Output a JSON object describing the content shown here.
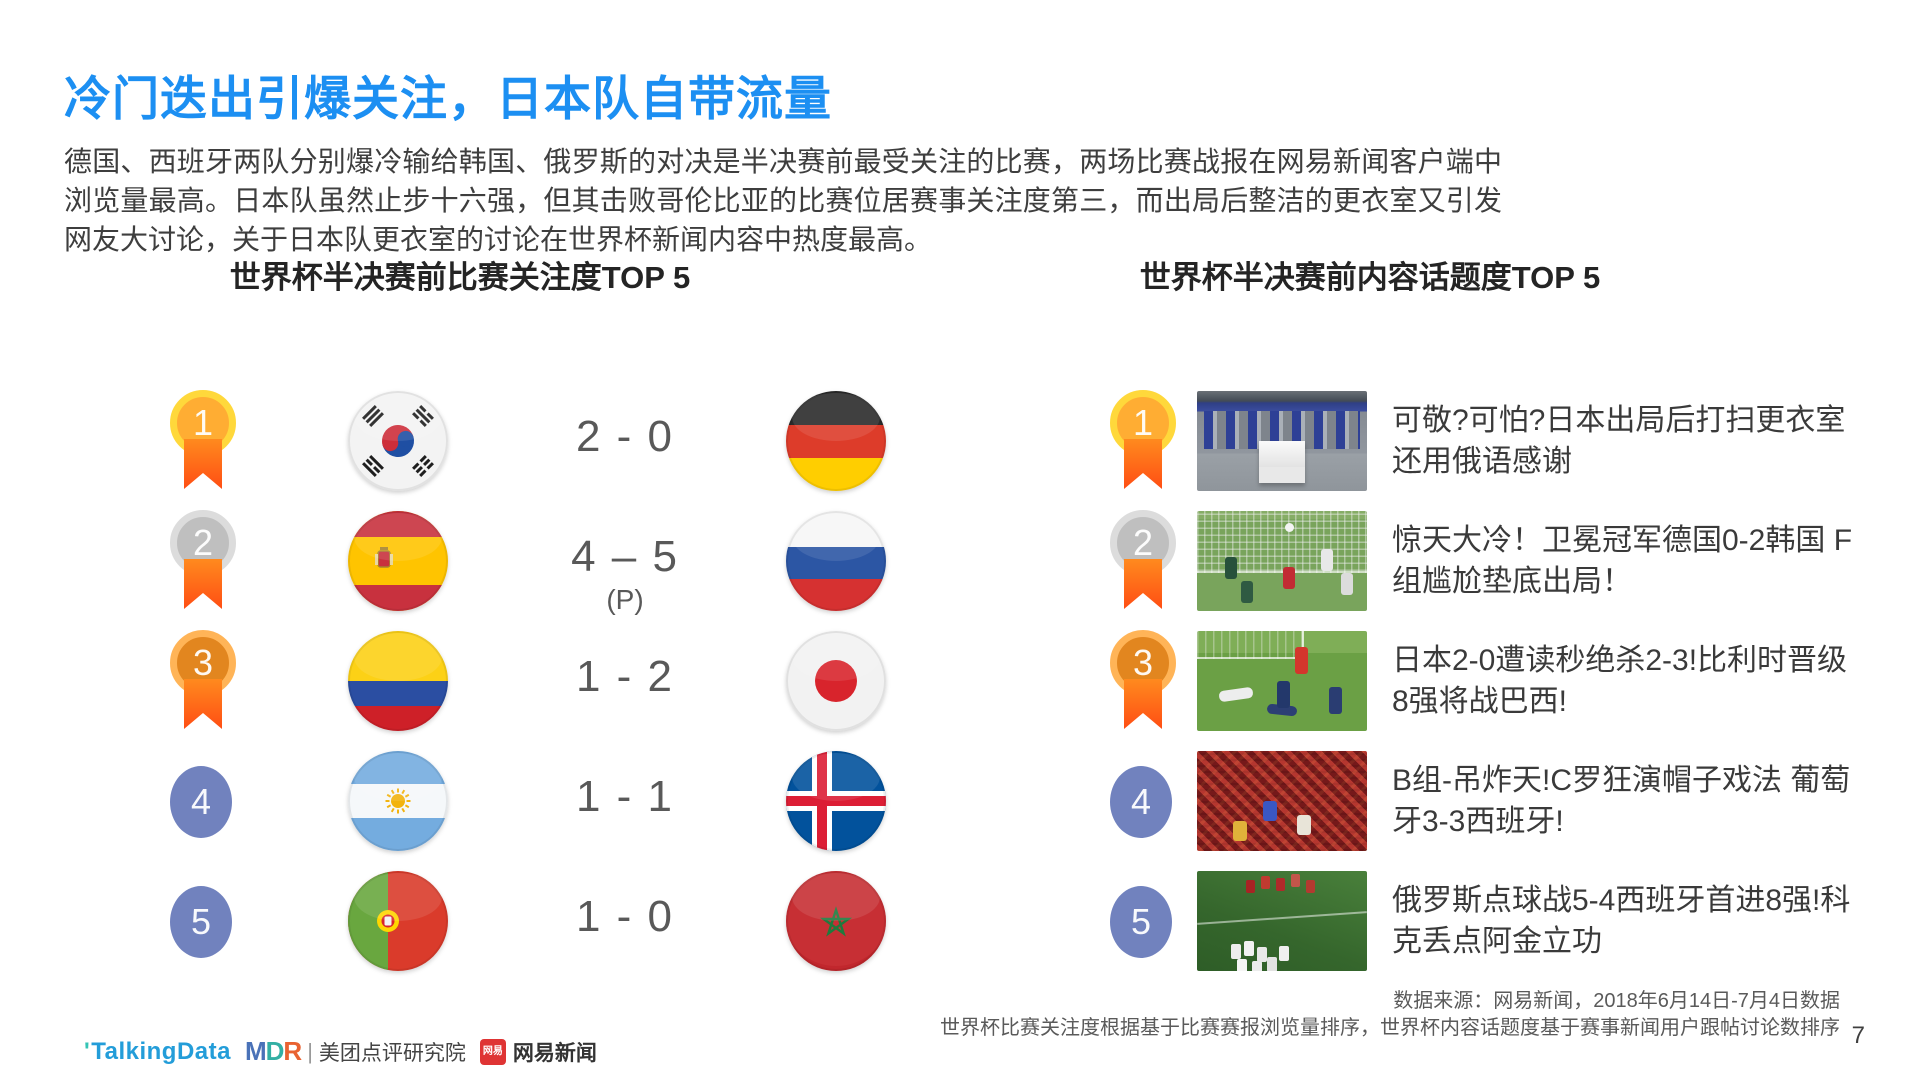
{
  "slide": {
    "title": "冷门迭出引爆关注，日本队自带流量",
    "body_paragraph": "德国、西班牙两队分别爆冷输给韩国、俄罗斯的对决是半决赛前最受关注的比赛，两场比赛战报在网易新闻客户端中浏览量最高。日本队虽然止步十六强，但其击败哥伦比亚的比赛位居赛事关注度第三，而出局后整洁的更衣室又引发网友大讨论，关于日本队更衣室的讨论在世界杯新闻内容中热度最高。",
    "page_number": "7"
  },
  "match_panel": {
    "title": "世界杯半决赛前比赛关注度TOP 5",
    "rows": [
      {
        "rank": "1",
        "rank_style": "gold-medal",
        "home_flag": "south-korea-flag",
        "score": "2 - 0",
        "score_note": "",
        "away_flag": "germany-flag"
      },
      {
        "rank": "2",
        "rank_style": "silver-medal",
        "home_flag": "spain-flag",
        "score": "4 – 5",
        "score_note": "(P)",
        "away_flag": "russia-flag"
      },
      {
        "rank": "3",
        "rank_style": "bronze-medal",
        "home_flag": "colombia-flag",
        "score": "1 - 2",
        "score_note": "",
        "away_flag": "japan-flag"
      },
      {
        "rank": "4",
        "rank_style": "circle",
        "home_flag": "argentina-flag",
        "score": "1 - 1",
        "score_note": "",
        "away_flag": "iceland-flag"
      },
      {
        "rank": "5",
        "rank_style": "circle",
        "home_flag": "portugal-flag",
        "score": "1 - 0",
        "score_note": "",
        "away_flag": "morocco-flag"
      }
    ]
  },
  "topic_panel": {
    "title": "世界杯半决赛前内容话题度TOP 5",
    "rows": [
      {
        "rank": "1",
        "rank_style": "gold-medal",
        "thumbnail": "locker-room-photo",
        "headline": "可敬?可怕?日本出局后打扫更衣室 还用俄语感谢"
      },
      {
        "rank": "2",
        "rank_style": "silver-medal",
        "thumbnail": "goal-net-photo",
        "headline": "惊天大冷！卫冕冠军德国0-2韩国 F组尴尬垫底出局！"
      },
      {
        "rank": "3",
        "rank_style": "bronze-medal",
        "thumbnail": "players-down-photo",
        "headline": "日本2-0遭读秒绝杀2-3!比利时晋级8强将战巴西!"
      },
      {
        "rank": "4",
        "rank_style": "circle",
        "thumbnail": "fans-crowd-photo",
        "headline": "B组-吊炸天!C罗狂演帽子戏法 葡萄牙3-3西班牙!"
      },
      {
        "rank": "5",
        "rank_style": "circle",
        "thumbnail": "celebration-photo",
        "headline": "俄罗斯点球战5-4西班牙首进8强!科克丢点阿金立功"
      }
    ]
  },
  "footer": {
    "source_line1": "数据来源：网易新闻，2018年6月14日-7月4日数据",
    "source_line2": "世界杯比赛关注度根据基于比赛赛报浏览量排序，世界杯内容话题度基于赛事新闻用户跟帖讨论数排序",
    "logos": {
      "talkingdata": "TalkingData",
      "talkingdata_tick": "'",
      "mdr_m": "M",
      "mdr_d": "D",
      "mdr_r": "R",
      "mdr_divider": "|",
      "mdr_label": "美团点评研究院",
      "netease_badge": "网易",
      "netease_label": "网易新闻"
    }
  },
  "colors": {
    "title_blue": "#1C8FF2",
    "body_text": "#3E3E3E",
    "heading_text": "#242424",
    "score_gray": "#595959",
    "rank_circle_blue": "#7182BE",
    "medal_gold": "#FFAD33",
    "medal_silver": "#BFBFBF",
    "medal_bronze": "#E2861F",
    "ribbon_orange": "#FF5A1C"
  }
}
